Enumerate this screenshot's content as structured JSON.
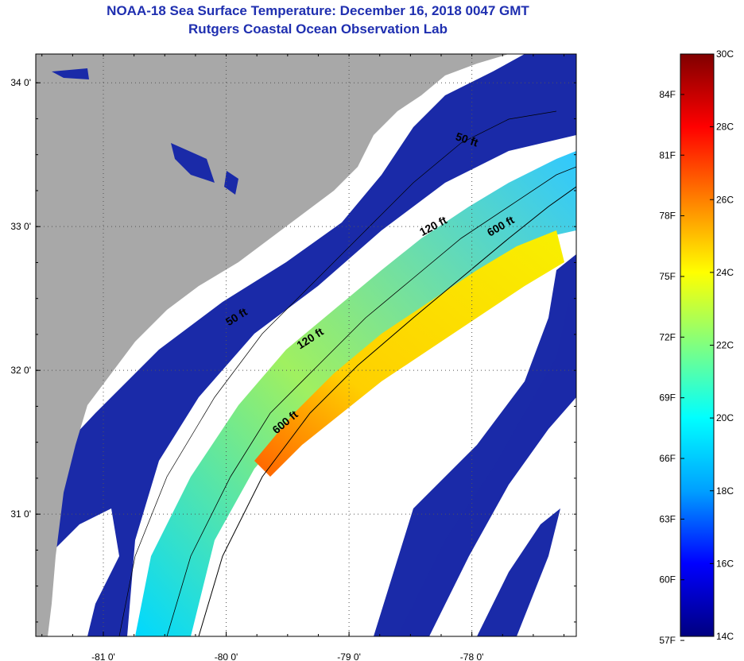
{
  "header": {
    "title": "NOAA-18 Sea Surface Temperature:  December 16, 2018 0047 GMT",
    "subtitle": "Rutgers Coastal Ocean Observation Lab"
  },
  "map": {
    "lon_range": [
      -81.55,
      -77.15
    ],
    "lat_range": [
      30.15,
      34.2
    ],
    "lon_ticks": [
      {
        "value": -81,
        "label": "-81 0'"
      },
      {
        "value": -80,
        "label": "-80 0'"
      },
      {
        "value": -79,
        "label": "-79 0'"
      },
      {
        "value": -78,
        "label": "-78 0'"
      }
    ],
    "lat_ticks": [
      {
        "value": 34,
        "label": "34 0'"
      },
      {
        "value": 33,
        "label": "33 0'"
      },
      {
        "value": 32,
        "label": "32 0'"
      },
      {
        "value": 31,
        "label": "31 0'"
      }
    ],
    "grid": true,
    "colors": {
      "land": "#a8a8a8",
      "cloud": "#ffffff",
      "cold": "#1a2aa8",
      "frame": "#000000"
    },
    "isobath_labels": [
      {
        "text": "50 ft",
        "lon": -78.05,
        "lat": 33.58,
        "angle": 18
      },
      {
        "text": "120 ft",
        "lon": -78.3,
        "lat": 32.98,
        "angle": -28
      },
      {
        "text": "600 ft",
        "lon": -77.75,
        "lat": 32.98,
        "angle": -30
      },
      {
        "text": "50 ft",
        "lon": -79.9,
        "lat": 32.35,
        "angle": -32
      },
      {
        "text": "120 ft",
        "lon": -79.3,
        "lat": 32.2,
        "angle": -33
      },
      {
        "text": "600 ft",
        "lon": -79.5,
        "lat": 31.62,
        "angle": -40
      }
    ]
  },
  "colorbar": {
    "celsius_range": [
      14,
      30
    ],
    "celsius_ticks": [
      "30C",
      "28C",
      "26C",
      "24C",
      "22C",
      "20C",
      "18C",
      "16C",
      "14C"
    ],
    "fahrenheit_ticks": [
      "84F",
      "81F",
      "78F",
      "75F",
      "72F",
      "69F",
      "66F",
      "63F",
      "60F",
      "57F"
    ],
    "fahrenheit_values": [
      84,
      81,
      78,
      75,
      72,
      69,
      66,
      63,
      60,
      57
    ],
    "stops": [
      "#000080",
      "#0000ff",
      "#00a0ff",
      "#00ffff",
      "#80ff80",
      "#ffff00",
      "#ff8000",
      "#ff0000",
      "#800000"
    ]
  }
}
